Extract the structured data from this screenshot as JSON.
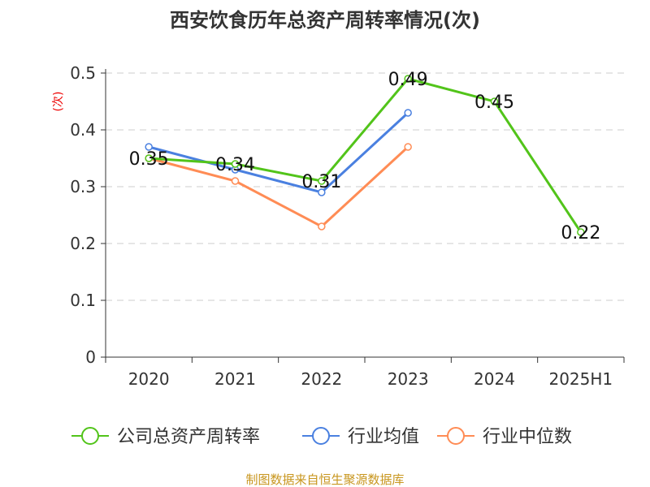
{
  "chart_data": {
    "type": "line",
    "title": "西安饮食历年总资产周转率情况(次)",
    "ylabel": "(次)",
    "xlabel": "",
    "categories": [
      "2020",
      "2021",
      "2022",
      "2023",
      "2024",
      "2025H1"
    ],
    "ylim": [
      0,
      0.5
    ],
    "yticks": [
      0,
      0.1,
      0.2,
      0.3,
      0.4,
      0.5
    ],
    "ytick_labels": [
      "0",
      "0.1",
      "0.2",
      "0.3",
      "0.4",
      "0.5"
    ],
    "grid": "horizontal dashed",
    "legend_position": "bottom",
    "series": [
      {
        "name": "公司总资产周转率",
        "color": "#52c41a",
        "values": [
          0.35,
          0.34,
          0.31,
          0.49,
          0.45,
          0.22
        ],
        "labels": [
          "0.35",
          "0.34",
          "0.31",
          "0.49",
          "0.45",
          "0.22"
        ]
      },
      {
        "name": "行业均值",
        "color": "#4a80e0",
        "values": [
          0.37,
          0.33,
          0.29,
          0.43,
          null,
          null
        ]
      },
      {
        "name": "行业中位数",
        "color": "#ff8c55",
        "values": [
          0.35,
          0.31,
          0.23,
          0.37,
          null,
          null
        ]
      }
    ],
    "source": "制图数据来自恒生聚源数据库"
  }
}
